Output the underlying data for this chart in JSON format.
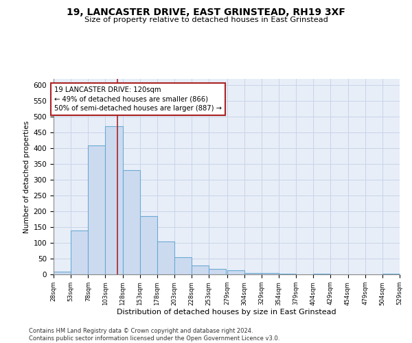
{
  "title": "19, LANCASTER DRIVE, EAST GRINSTEAD, RH19 3XF",
  "subtitle": "Size of property relative to detached houses in East Grinstead",
  "xlabel": "Distribution of detached houses by size in East Grinstead",
  "ylabel": "Number of detached properties",
  "bin_edges": [
    28,
    53,
    78,
    103,
    128,
    153,
    178,
    203,
    228,
    253,
    279,
    304,
    329,
    354,
    379,
    404,
    429,
    454,
    479,
    504,
    529
  ],
  "bar_heights": [
    8,
    140,
    410,
    470,
    330,
    185,
    105,
    55,
    28,
    18,
    12,
    5,
    4,
    3,
    0,
    3,
    0,
    0,
    0,
    3
  ],
  "bar_color": "#ccdaf0",
  "bar_edge_color": "#6aaad4",
  "grid_color": "#c8d4e8",
  "background_color": "#e8eef8",
  "vline_x": 120,
  "vline_color": "#aa2222",
  "annotation_text": "19 LANCASTER DRIVE: 120sqm\n← 49% of detached houses are smaller (866)\n50% of semi-detached houses are larger (887) →",
  "annotation_box_color": "white",
  "annotation_box_edge_color": "#aa2222",
  "footer_text": "Contains HM Land Registry data © Crown copyright and database right 2024.\nContains public sector information licensed under the Open Government Licence v3.0.",
  "ylim": [
    0,
    620
  ],
  "yticks": [
    0,
    50,
    100,
    150,
    200,
    250,
    300,
    350,
    400,
    450,
    500,
    550,
    600
  ]
}
